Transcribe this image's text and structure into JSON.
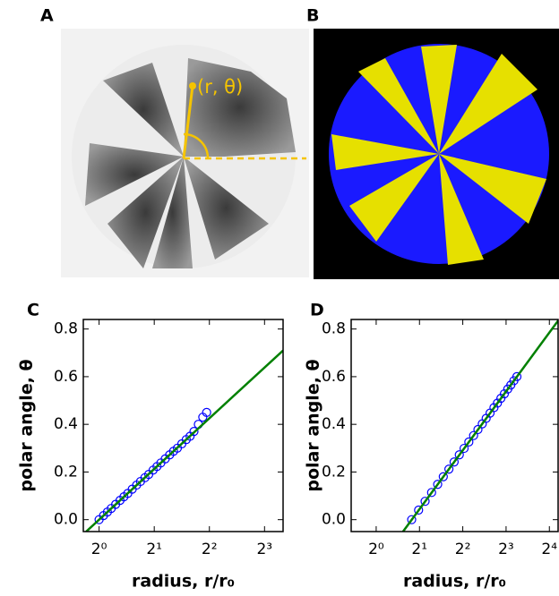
{
  "figure": {
    "panel_labels": [
      "A",
      "B"
    ],
    "annotation": "(r, θ)"
  },
  "chart_data": [
    {
      "type": "scatter",
      "panel_label": "C",
      "xlabel": "radius, r/r₀",
      "ylabel": "polar angle, θ",
      "xscale": "log",
      "xbase": 2,
      "xlim": [
        0.82,
        10.1
      ],
      "xticks": [
        {
          "value": 1,
          "label": "2⁰"
        },
        {
          "value": 2,
          "label": "2¹"
        },
        {
          "value": 4,
          "label": "2²"
        },
        {
          "value": 8,
          "label": "2³"
        }
      ],
      "ylim": [
        -0.05,
        0.84
      ],
      "yticks": [
        {
          "value": 0,
          "label": "0.0"
        },
        0.2,
        0.4,
        0.6,
        0.8
      ],
      "series": [
        {
          "color": "#0000ff",
          "marker": "o",
          "x": [
            1.0,
            1.057,
            1.11,
            1.165,
            1.231,
            1.301,
            1.366,
            1.434,
            1.516,
            1.602,
            1.682,
            1.778,
            1.866,
            1.972,
            2.071,
            2.173,
            2.297,
            2.428,
            2.549,
            2.676,
            2.828,
            2.99,
            3.138,
            3.294,
            3.482,
            3.681,
            3.864
          ],
          "values": [
            0,
            0.017,
            0.032,
            0.047,
            0.064,
            0.081,
            0.096,
            0.11,
            0.128,
            0.145,
            0.16,
            0.176,
            0.19,
            0.208,
            0.223,
            0.238,
            0.255,
            0.272,
            0.287,
            0.3,
            0.318,
            0.336,
            0.35,
            0.37,
            0.4,
            0.43,
            0.45
          ]
        },
        {
          "color": "#008000",
          "marker": "line",
          "x": [
            0.85,
            10.1
          ],
          "values": [
            -0.05,
            0.71
          ]
        }
      ]
    },
    {
      "type": "scatter",
      "panel_label": "D",
      "xlabel": "radius, r/r₀",
      "ylabel": "polar angle, θ",
      "xscale": "log",
      "xbase": 2,
      "xlim": [
        0.67,
        18.4
      ],
      "xticks": [
        {
          "value": 1,
          "label": "2⁰"
        },
        {
          "value": 2,
          "label": "2¹"
        },
        {
          "value": 4,
          "label": "2²"
        },
        {
          "value": 8,
          "label": "2³"
        },
        {
          "value": 16,
          "label": "2⁴"
        }
      ],
      "ylim": [
        -0.05,
        0.84
      ],
      "yticks": [
        {
          "value": 0,
          "label": "0.0"
        },
        0.2,
        0.4,
        0.6,
        0.8
      ],
      "series": [
        {
          "color": "#0000ff",
          "marker": "o",
          "x": [
            1.765,
            1.972,
            2.188,
            2.428,
            2.676,
            2.928,
            3.204,
            3.482,
            3.784,
            4.084,
            4.407,
            4.757,
            5.098,
            5.464,
            5.816,
            6.19,
            6.589,
            6.964,
            7.362,
            7.781,
            8.225,
            8.634,
            9.063,
            9.514
          ],
          "values": [
            0,
            0.04,
            0.077,
            0.114,
            0.148,
            0.18,
            0.212,
            0.242,
            0.272,
            0.299,
            0.326,
            0.353,
            0.378,
            0.402,
            0.425,
            0.447,
            0.47,
            0.489,
            0.509,
            0.528,
            0.548,
            0.565,
            0.583,
            0.6
          ]
        },
        {
          "color": "#008000",
          "marker": "line",
          "x": [
            1.537,
            18.4
          ],
          "values": [
            -0.05,
            0.835
          ]
        }
      ]
    }
  ]
}
